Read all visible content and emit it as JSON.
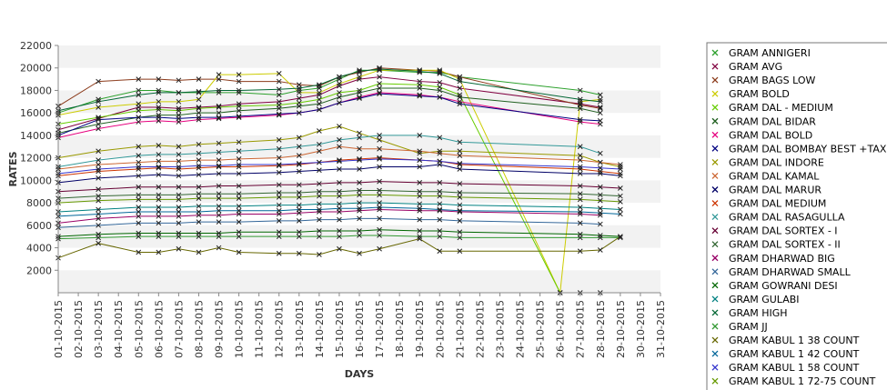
{
  "chart_data": {
    "type": "line",
    "title": "",
    "xlabel": "DAYS",
    "ylabel": "RATES",
    "ylim": [
      0,
      22000
    ],
    "yticks": [
      2000,
      4000,
      6000,
      8000,
      10000,
      12000,
      14000,
      16000,
      18000,
      20000,
      22000
    ],
    "grid": "alternating horizontal bands",
    "legend_position": "right",
    "categories": [
      "01-10-2015",
      "02-10-2015",
      "03-10-2015",
      "04-10-2015",
      "05-10-2015",
      "06-10-2015",
      "07-10-2015",
      "08-10-2015",
      "09-10-2015",
      "10-10-2015",
      "11-10-2015",
      "12-10-2015",
      "13-10-2015",
      "14-10-2015",
      "15-10-2015",
      "16-10-2015",
      "17-10-2015",
      "18-10-2015",
      "19-10-2015",
      "20-10-2015",
      "21-10-2015",
      "22-10-2015",
      "23-10-2015",
      "24-10-2015",
      "25-10-2015",
      "26-10-2015",
      "27-10-2015",
      "28-10-2015",
      "29-10-2015",
      "30-10-2015",
      "31-10-2015"
    ],
    "series": [
      {
        "name": "GRAM ANNIGERI",
        "color": "#2ca02c",
        "values": [
          16000,
          null,
          17200,
          null,
          18000,
          18000,
          17800,
          17800,
          17800,
          17800,
          null,
          17600,
          18000,
          18200,
          19000,
          19800,
          19800,
          null,
          19600,
          19600,
          19200,
          null,
          null,
          null,
          null,
          null,
          18000,
          17600,
          null,
          null,
          null
        ]
      },
      {
        "name": "GRAM AVG",
        "color": "#800040",
        "values": [
          14500,
          null,
          15500,
          null,
          16500,
          16500,
          16400,
          16500,
          16600,
          16800,
          null,
          17000,
          17300,
          17600,
          18400,
          19000,
          19200,
          null,
          18800,
          18700,
          18200,
          null,
          null,
          null,
          null,
          null,
          16800,
          16500,
          null,
          null,
          null
        ]
      },
      {
        "name": "GRAM BAGS LOW",
        "color": "#8b3a1a",
        "values": [
          16600,
          null,
          18800,
          null,
          19000,
          19000,
          18900,
          19000,
          19000,
          18800,
          null,
          18800,
          18500,
          18400,
          19200,
          19600,
          20000,
          null,
          19800,
          19700,
          19200,
          null,
          null,
          null,
          null,
          null,
          16700,
          16400,
          null,
          null,
          null
        ]
      },
      {
        "name": "GRAM BOLD",
        "color": "#cccc00",
        "values": [
          15800,
          null,
          16500,
          null,
          16800,
          17000,
          17000,
          17200,
          19400,
          19400,
          null,
          19500,
          17800,
          17800,
          18600,
          19200,
          19800,
          null,
          19800,
          19800,
          19000,
          null,
          null,
          null,
          null,
          0,
          17000,
          17200,
          null,
          null,
          null
        ]
      },
      {
        "name": "GRAM DAL - MEDIUM",
        "color": "#66cc00",
        "values": [
          15000,
          null,
          15600,
          null,
          16200,
          16300,
          16200,
          16400,
          16500,
          16600,
          null,
          16700,
          16900,
          17200,
          17800,
          18000,
          18600,
          null,
          18500,
          18300,
          17600,
          null,
          null,
          null,
          null,
          0,
          0,
          0,
          null,
          null,
          null
        ]
      },
      {
        "name": "GRAM DAL BIDAR",
        "color": "#1f5f1f",
        "values": [
          14200,
          null,
          15000,
          null,
          15600,
          15800,
          15800,
          16000,
          16000,
          16200,
          null,
          16400,
          16600,
          16800,
          17400,
          17800,
          18200,
          null,
          18200,
          18000,
          17400,
          null,
          null,
          null,
          null,
          null,
          16400,
          16000,
          null,
          null,
          null
        ]
      },
      {
        "name": "GRAM DAL BOLD",
        "color": "#e6007e",
        "values": [
          13800,
          null,
          14600,
          null,
          15200,
          15300,
          15200,
          15400,
          15500,
          15600,
          null,
          15800,
          16000,
          16300,
          16900,
          17400,
          17800,
          null,
          17600,
          17400,
          17000,
          null,
          null,
          null,
          null,
          null,
          15200,
          15000,
          null,
          null,
          null
        ]
      },
      {
        "name": "GRAM DAL BOMBAY BEST +TAX",
        "color": "#000080",
        "values": [
          14000,
          null,
          15400,
          null,
          15600,
          15600,
          15500,
          15600,
          15600,
          15700,
          null,
          15900,
          16000,
          16300,
          16900,
          17300,
          17700,
          null,
          17500,
          17400,
          16800,
          null,
          null,
          null,
          null,
          null,
          15400,
          15300,
          null,
          null,
          null
        ]
      },
      {
        "name": "GRAM DAL INDORE",
        "color": "#999900",
        "values": [
          12000,
          null,
          12600,
          null,
          13000,
          13100,
          13000,
          13200,
          13300,
          13400,
          null,
          13600,
          13800,
          14400,
          14800,
          14200,
          13600,
          null,
          12400,
          12600,
          12600,
          null,
          null,
          null,
          null,
          null,
          12200,
          11600,
          11200,
          null,
          null
        ]
      },
      {
        "name": "GRAM DAL KAMAL",
        "color": "#cc6633",
        "values": [
          11000,
          null,
          11400,
          null,
          11600,
          11700,
          11700,
          11800,
          11800,
          11900,
          null,
          12000,
          12200,
          12600,
          13000,
          12800,
          12800,
          null,
          12600,
          12400,
          12200,
          null,
          null,
          null,
          null,
          null,
          11800,
          11600,
          11400,
          null,
          null
        ]
      },
      {
        "name": "GRAM DAL MARUR",
        "color": "#000066",
        "values": [
          9800,
          null,
          10200,
          null,
          10400,
          10500,
          10400,
          10500,
          10600,
          10600,
          null,
          10700,
          10800,
          10900,
          11000,
          11000,
          11200,
          null,
          11200,
          11400,
          11000,
          null,
          null,
          null,
          null,
          null,
          10600,
          10600,
          10400,
          null,
          null
        ]
      },
      {
        "name": "GRAM DAL MEDIUM",
        "color": "#cc3300",
        "values": [
          10400,
          null,
          10800,
          null,
          11000,
          11100,
          11000,
          11100,
          11200,
          11200,
          null,
          11300,
          11400,
          11600,
          11800,
          11900,
          12000,
          null,
          11800,
          11700,
          11400,
          null,
          null,
          null,
          null,
          null,
          11000,
          10800,
          10600,
          null,
          null
        ]
      },
      {
        "name": "GRAM DAL RASAGULLA",
        "color": "#339999",
        "values": [
          11200,
          null,
          11800,
          null,
          12200,
          12300,
          12300,
          12400,
          12500,
          12600,
          null,
          12800,
          13000,
          13200,
          13600,
          13800,
          14000,
          null,
          14000,
          13800,
          13400,
          null,
          null,
          null,
          null,
          null,
          13000,
          12400,
          null,
          null,
          null
        ]
      },
      {
        "name": "GRAM DAL SORTEX  - I",
        "color": "#660033",
        "values": [
          9000,
          null,
          9200,
          null,
          9400,
          9400,
          9400,
          9400,
          9500,
          9500,
          null,
          9600,
          9600,
          9700,
          9800,
          9800,
          9900,
          null,
          9800,
          9800,
          9700,
          null,
          null,
          null,
          null,
          null,
          9500,
          9400,
          9300,
          null,
          null
        ]
      },
      {
        "name": "GRAM DAL SORTEX - II",
        "color": "#336633",
        "values": [
          8400,
          null,
          8600,
          null,
          8700,
          8700,
          8700,
          8800,
          8800,
          8800,
          null,
          8900,
          8900,
          9000,
          9000,
          9100,
          9100,
          null,
          9000,
          9000,
          8900,
          null,
          null,
          null,
          null,
          null,
          8800,
          8700,
          8600,
          null,
          null
        ]
      },
      {
        "name": "GRAM DHARWAD BIG",
        "color": "#990066",
        "values": [
          6200,
          null,
          6600,
          null,
          6800,
          6800,
          6800,
          6900,
          6900,
          7000,
          null,
          7000,
          7100,
          7200,
          7200,
          7300,
          7400,
          null,
          7300,
          7300,
          7200,
          null,
          null,
          null,
          null,
          null,
          7000,
          6900,
          null,
          null,
          null
        ]
      },
      {
        "name": "GRAM DHARWAD SMALL",
        "color": "#336699",
        "values": [
          5800,
          null,
          6000,
          null,
          6200,
          6200,
          6200,
          6300,
          6300,
          6300,
          null,
          6400,
          6400,
          6500,
          6500,
          6600,
          6600,
          null,
          6500,
          6500,
          6400,
          null,
          null,
          null,
          null,
          null,
          6200,
          6100,
          null,
          null,
          null
        ]
      },
      {
        "name": "GRAM GOWRANI DESI",
        "color": "#006600",
        "values": [
          5000,
          null,
          5200,
          null,
          5300,
          5300,
          5300,
          5300,
          5300,
          5400,
          null,
          5400,
          5400,
          5500,
          5500,
          5500,
          5600,
          null,
          5500,
          5500,
          5400,
          null,
          null,
          null,
          null,
          null,
          5200,
          5100,
          5000,
          null,
          null
        ]
      },
      {
        "name": "GRAM GULABI",
        "color": "#008080",
        "values": [
          7200,
          null,
          7400,
          null,
          7600,
          7600,
          7600,
          7700,
          7700,
          7700,
          null,
          7800,
          7800,
          7900,
          7900,
          8000,
          8000,
          null,
          7900,
          7900,
          7800,
          null,
          null,
          null,
          null,
          null,
          7600,
          7500,
          7400,
          null,
          null
        ]
      },
      {
        "name": "GRAM HIGH",
        "color": "#006633",
        "values": [
          16200,
          null,
          17000,
          null,
          17600,
          17800,
          17800,
          17900,
          18000,
          18000,
          null,
          18100,
          18200,
          18500,
          19200,
          19700,
          19900,
          null,
          19700,
          19500,
          18800,
          null,
          null,
          null,
          null,
          null,
          17200,
          17000,
          null,
          null,
          null
        ]
      },
      {
        "name": "GRAM JJ",
        "color": "#339933",
        "values": [
          4800,
          null,
          4900,
          null,
          5000,
          5000,
          5000,
          5000,
          5000,
          5000,
          null,
          5000,
          5000,
          5000,
          5000,
          5100,
          5100,
          null,
          5000,
          5000,
          4900,
          null,
          null,
          null,
          null,
          null,
          4900,
          4900,
          4900,
          null,
          null
        ]
      },
      {
        "name": "GRAM KABUL 1 38 COUNT",
        "color": "#666600",
        "values": [
          3100,
          null,
          4400,
          null,
          3600,
          3600,
          3900,
          3600,
          4000,
          3600,
          null,
          3500,
          3500,
          3400,
          3900,
          3500,
          3900,
          null,
          4800,
          3700,
          3700,
          null,
          null,
          null,
          null,
          null,
          3700,
          3800,
          5000,
          null,
          null
        ]
      },
      {
        "name": "GRAM KABUL 1 42 COUNT",
        "color": "#006699",
        "values": [
          6800,
          null,
          7000,
          null,
          7200,
          7200,
          7200,
          7200,
          7300,
          7300,
          null,
          7300,
          7400,
          7400,
          7500,
          7500,
          7600,
          null,
          7500,
          7400,
          7300,
          null,
          null,
          null,
          null,
          null,
          7200,
          7100,
          7000,
          null,
          null
        ]
      },
      {
        "name": "GRAM KABUL 1 58 COUNT",
        "color": "#3333cc",
        "values": [
          10600,
          null,
          11000,
          null,
          11200,
          11200,
          11200,
          11300,
          11300,
          11400,
          null,
          11400,
          11500,
          11600,
          11700,
          11800,
          11900,
          null,
          11800,
          11700,
          11500,
          null,
          null,
          null,
          null,
          null,
          11200,
          11100,
          11000,
          null,
          null
        ]
      },
      {
        "name": "GRAM KABUL 1 72-75 COUNT",
        "color": "#669900",
        "values": [
          8000,
          null,
          8200,
          null,
          8300,
          8300,
          8300,
          8400,
          8400,
          8400,
          null,
          8500,
          8500,
          8600,
          8600,
          8700,
          8700,
          null,
          8600,
          8600,
          8500,
          null,
          null,
          null,
          null,
          null,
          8300,
          8200,
          8100,
          null,
          null
        ]
      }
    ]
  }
}
